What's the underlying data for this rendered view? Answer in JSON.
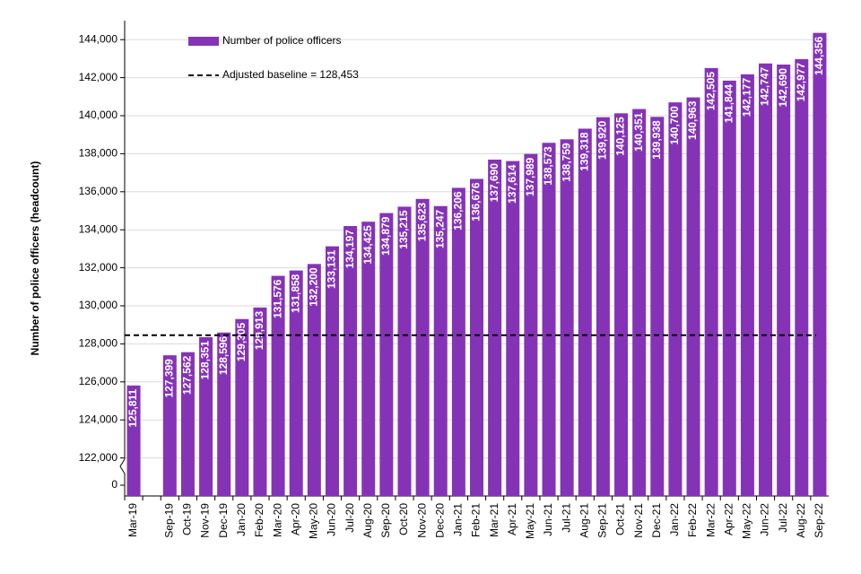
{
  "chart_data": {
    "type": "bar",
    "y_label": "Number of police officers (headcount)",
    "categories": [
      "Mar-19",
      null,
      "Sep-19",
      "Oct-19",
      "Nov-19",
      "Dec-19",
      "Jan-20",
      "Feb-20",
      "Mar-20",
      "Apr-20",
      "May-20",
      "Jun-20",
      "Jul-20",
      "Aug-20",
      "Sep-20",
      "Oct-20",
      "Nov-20",
      "Dec-20",
      "Jan-21",
      "Feb-21",
      "Mar-21",
      "Apr-21",
      "May-21",
      "Jun-21",
      "Jul-21",
      "Aug-21",
      "Sep-21",
      "Oct-21",
      "Nov-21",
      "Dec-21",
      "Jan-22",
      "Feb-22",
      "Mar-22",
      "Apr-22",
      "May-22",
      "Jun-22",
      "Jul-22",
      "Aug-22",
      "Sep-22"
    ],
    "series": [
      {
        "name": "Number of police officers",
        "color": "#8533b6",
        "values": [
          125811,
          null,
          127399,
          127562,
          128351,
          128596,
          129305,
          129913,
          131576,
          131858,
          132200,
          133131,
          134197,
          134425,
          134879,
          135215,
          135623,
          135247,
          136206,
          136676,
          137690,
          137614,
          137989,
          138573,
          138759,
          139318,
          139920,
          140125,
          140351,
          139938,
          140700,
          140963,
          142505,
          141844,
          142177,
          142747,
          142690,
          142977,
          144356
        ],
        "value_labels": [
          "125,811",
          null,
          "127,399",
          "127,562",
          "128,351",
          "128,596",
          "129,305",
          "129,913",
          "131,576",
          "131,858",
          "132,200",
          "133,131",
          "134,197",
          "134,425",
          "134,879",
          "135,215",
          "135,623",
          "135,247",
          "136,206",
          "136,676",
          "137,690",
          "137,614",
          "137,989",
          "138,573",
          "138,759",
          "139,318",
          "139,920",
          "140,125",
          "140,351",
          "139,938",
          "140,700",
          "140,963",
          "142,505",
          "141,844",
          "142,177",
          "142,747",
          "142,690",
          "142,977",
          "144,356"
        ]
      }
    ],
    "baseline": {
      "name": "Adjusted baseline = 128,453",
      "value": 128453,
      "color": "#000000"
    },
    "ylim": [
      120000,
      145000
    ],
    "yticks": [
      0,
      {
        "value": 122000,
        "label": "122,000"
      },
      {
        "value": 124000,
        "label": "124,000"
      },
      {
        "value": 126000,
        "label": "126,000"
      },
      {
        "value": 128000,
        "label": "128,000"
      },
      {
        "value": 130000,
        "label": "130,000"
      },
      {
        "value": 132000,
        "label": "132,000"
      },
      {
        "value": 134000,
        "label": "134,000"
      },
      {
        "value": 136000,
        "label": "136,000"
      },
      {
        "value": 138000,
        "label": "138,000"
      },
      {
        "value": 140000,
        "label": "140,000"
      },
      {
        "value": 142000,
        "label": "142,000"
      },
      {
        "value": 144000,
        "label": "144,000"
      }
    ],
    "axis_break": true,
    "grid": true,
    "legend": "top-left"
  }
}
